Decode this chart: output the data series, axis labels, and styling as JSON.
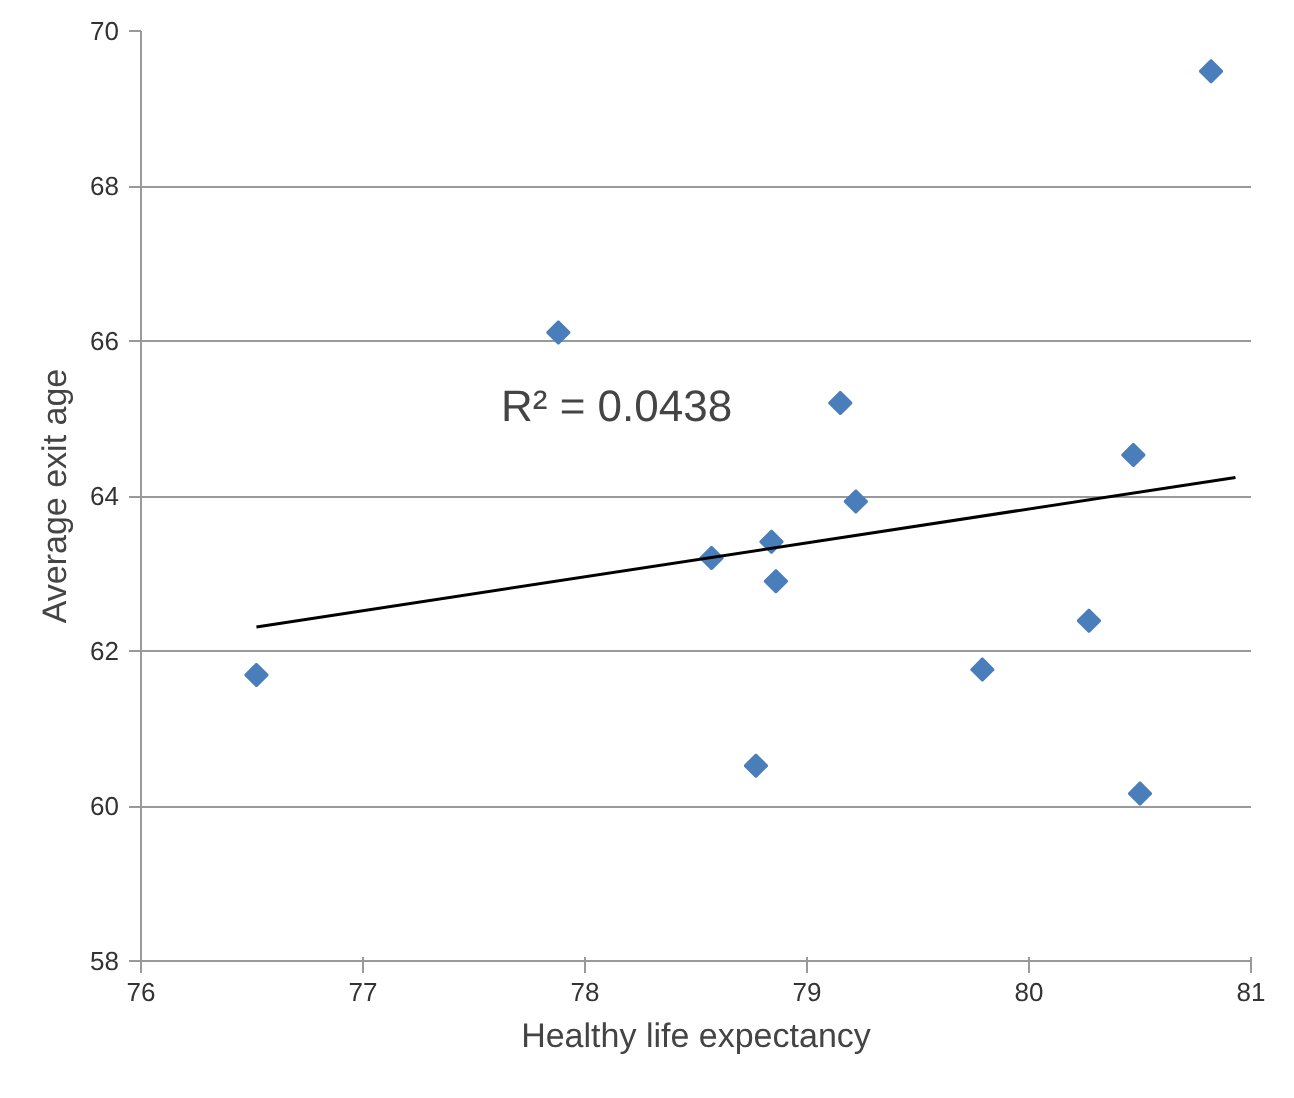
{
  "chart_data": {
    "type": "scatter",
    "xlabel": "Healthy life expectancy",
    "ylabel": "Average exit age",
    "xlim": [
      76,
      81
    ],
    "xticks": [
      76,
      77,
      78,
      79,
      80,
      81
    ],
    "ylim": [
      58,
      70
    ],
    "yticks": [
      58,
      60,
      62,
      64,
      66,
      68,
      70
    ],
    "grid": "y",
    "marker": "diamond",
    "annotations": [
      "R² = 0.0438"
    ],
    "series": [
      {
        "color": "#4a7ebb",
        "x": [
          76.52,
          77.88,
          78.57,
          78.84,
          78.86,
          78.77,
          79.15,
          79.22,
          79.79,
          80.27,
          80.47,
          80.5,
          80.82
        ],
        "values": [
          61.69,
          66.11,
          63.2,
          63.41,
          62.9,
          60.52,
          65.2,
          63.93,
          61.76,
          62.39,
          64.53,
          60.16,
          69.48
        ]
      },
      {
        "type": "line",
        "marker": "none",
        "color": "#000000",
        "x": [
          76.52,
          80.93
        ],
        "values": [
          62.31,
          64.24
        ]
      }
    ]
  }
}
